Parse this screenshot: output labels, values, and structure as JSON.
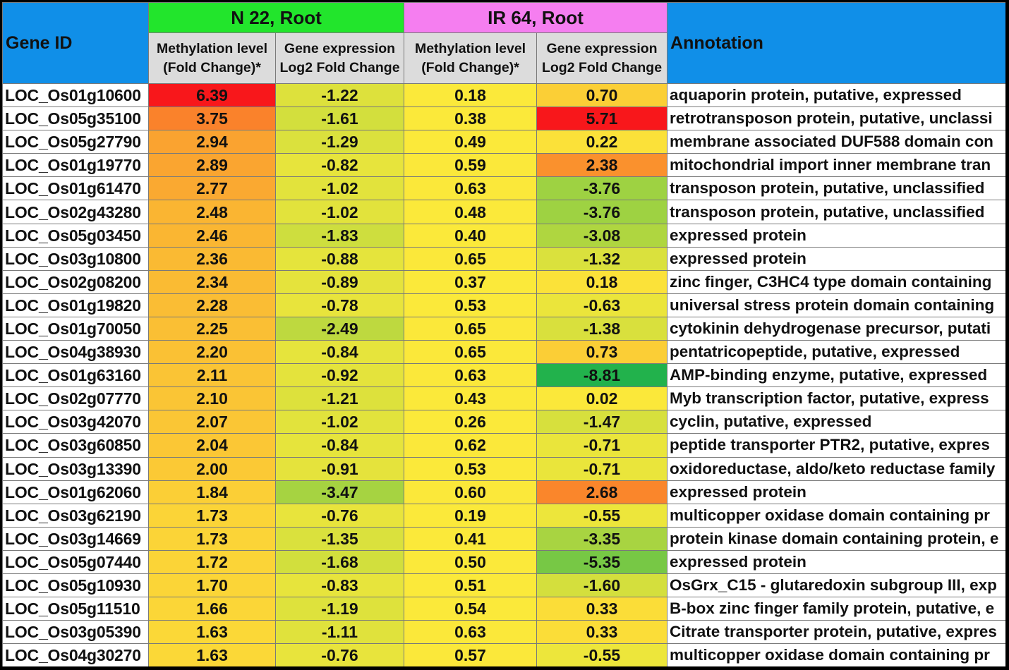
{
  "chart_data": {
    "type": "table",
    "headers": {
      "gene_id": "Gene ID",
      "annotation": "Annotation",
      "groups": [
        {
          "label": "N 22, Root",
          "color": "#22e52c"
        },
        {
          "label": "IR 64, Root",
          "color": "#f57ef0"
        }
      ],
      "subheaders": [
        [
          "Methylation level",
          "(Fold Change)*"
        ],
        [
          "Gene expression",
          "Log2 Fold Change"
        ],
        [
          "Methylation level",
          "(Fold Change)*"
        ],
        [
          "Gene expression",
          "Log2 Fold Change"
        ]
      ]
    },
    "color_scale": {
      "low": "#22b24c",
      "mid": "#fbe93a",
      "high": "#f8171b"
    },
    "header_color": "#108fe8",
    "subheader_color": "#dcdcdc",
    "rows": [
      [
        "LOC_Os01g10600",
        "6.39",
        "-1.22",
        "0.18",
        "0.70",
        "aquaporin protein, putative, expressed"
      ],
      [
        "LOC_Os05g35100",
        "3.75",
        "-1.61",
        "0.38",
        "5.71",
        "retrotransposon protein, putative, unclassi"
      ],
      [
        "LOC_Os05g27790",
        "2.94",
        "-1.29",
        "0.49",
        "0.22",
        "membrane associated DUF588 domain con"
      ],
      [
        "LOC_Os01g19770",
        "2.89",
        "-0.82",
        "0.59",
        "2.38",
        "mitochondrial import inner membrane tran"
      ],
      [
        "LOC_Os01g61470",
        "2.77",
        "-1.02",
        "0.63",
        "-3.76",
        "transposon protein, putative, unclassified"
      ],
      [
        "LOC_Os02g43280",
        "2.48",
        "-1.02",
        "0.48",
        "-3.76",
        "transposon protein, putative, unclassified"
      ],
      [
        "LOC_Os05g03450",
        "2.46",
        "-1.83",
        "0.40",
        "-3.08",
        "expressed protein"
      ],
      [
        "LOC_Os03g10800",
        "2.36",
        "-0.88",
        "0.65",
        "-1.32",
        "expressed protein"
      ],
      [
        "LOC_Os02g08200",
        "2.34",
        "-0.89",
        "0.37",
        "0.18",
        "zinc finger, C3HC4 type domain containing"
      ],
      [
        "LOC_Os01g19820",
        "2.28",
        "-0.78",
        "0.53",
        "-0.63",
        "universal stress protein domain containing"
      ],
      [
        "LOC_Os01g70050",
        "2.25",
        "-2.49",
        "0.65",
        "-1.38",
        "cytokinin dehydrogenase precursor, putati"
      ],
      [
        "LOC_Os04g38930",
        "2.20",
        "-0.84",
        "0.65",
        "0.73",
        "pentatricopeptide, putative, expressed"
      ],
      [
        "LOC_Os01g63160",
        "2.11",
        "-0.92",
        "0.63",
        "-8.81",
        "AMP-binding enzyme, putative, expressed"
      ],
      [
        "LOC_Os02g07770",
        "2.10",
        "-1.21",
        "0.43",
        "0.02",
        "Myb transcription factor, putative, express"
      ],
      [
        "LOC_Os03g42070",
        "2.07",
        "-1.02",
        "0.26",
        "-1.47",
        "cyclin, putative, expressed"
      ],
      [
        "LOC_Os03g60850",
        "2.04",
        "-0.84",
        "0.62",
        "-0.71",
        "peptide transporter PTR2, putative, expres"
      ],
      [
        "LOC_Os03g13390",
        "2.00",
        "-0.91",
        "0.53",
        "-0.71",
        "oxidoreductase, aldo/keto reductase family"
      ],
      [
        "LOC_Os01g62060",
        "1.84",
        "-3.47",
        "0.60",
        "2.68",
        "expressed protein"
      ],
      [
        "LOC_Os03g62190",
        "1.73",
        "-0.76",
        "0.19",
        "-0.55",
        "multicopper oxidase domain containing pr"
      ],
      [
        "LOC_Os03g14669",
        "1.73",
        "-1.35",
        "0.41",
        "-3.35",
        "protein kinase domain containing protein, e"
      ],
      [
        "LOC_Os05g07440",
        "1.72",
        "-1.68",
        "0.50",
        "-5.35",
        "expressed protein"
      ],
      [
        "LOC_Os05g10930",
        "1.70",
        "-0.83",
        "0.51",
        "-1.60",
        "OsGrx_C15 - glutaredoxin subgroup III, exp"
      ],
      [
        "LOC_Os05g11510",
        "1.66",
        "-1.19",
        "0.54",
        "0.33",
        "B-box zinc finger family protein, putative, e"
      ],
      [
        "LOC_Os03g05390",
        "1.63",
        "-1.11",
        "0.63",
        "0.33",
        "Citrate transporter protein, putative, expres"
      ],
      [
        "LOC_Os04g30270",
        "1.63",
        "-0.76",
        "0.57",
        "-0.55",
        "multicopper oxidase domain containing pr"
      ]
    ]
  }
}
